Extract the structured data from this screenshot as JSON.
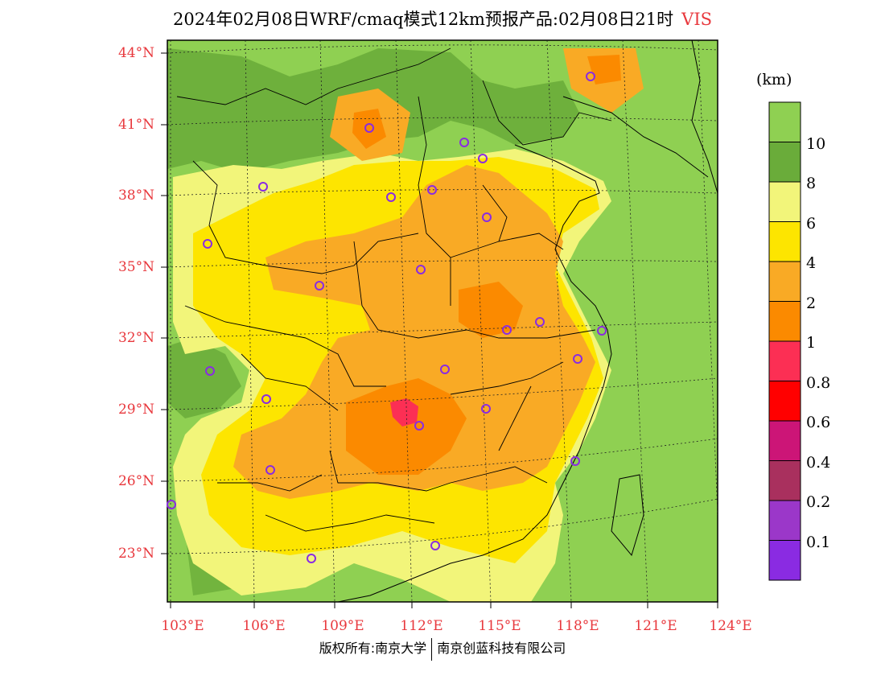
{
  "title": "2024年02月08日WRF/cmaq模式12km预报产品:02月08日21时",
  "variable": "VIS",
  "lat_labels": [
    "44°N",
    "41°N",
    "38°N",
    "35°N",
    "32°N",
    "29°N",
    "26°N",
    "23°N"
  ],
  "lon_labels": [
    "103°E",
    "106°E",
    "109°E",
    "112°E",
    "115°E",
    "118°E",
    "121°E",
    "124°E"
  ],
  "colorbar": {
    "unit": "(km)",
    "levels": [
      "10",
      "8",
      "6",
      "4",
      "2",
      "1",
      "0.8",
      "0.6",
      "0.4",
      "0.2",
      "0.1"
    ],
    "colors": [
      "#8fd052",
      "#6aac3a",
      "#f2f57a",
      "#fde500",
      "#f9aa25",
      "#fb8a00",
      "#fc2f54",
      "#ff0000",
      "#cc1577",
      "#a9305e",
      "#9b37c9",
      "#8a2be2"
    ]
  },
  "credit": {
    "left": "版权所有:南京大学",
    "right": "南京创蓝科技有限公司"
  }
}
